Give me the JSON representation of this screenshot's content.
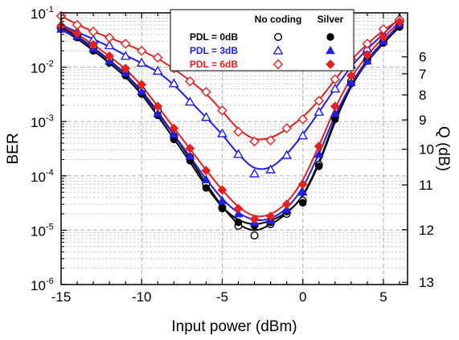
{
  "chart_data": {
    "type": "scatter",
    "title": "",
    "xlabel": "Input power (dBm)",
    "ylabel": "BER",
    "y2label": "Q (dB)",
    "xlim": [
      -15,
      6.5
    ],
    "ylim_log10": [
      -6,
      -1
    ],
    "x_ticks": [
      -15,
      -10,
      -5,
      0,
      5
    ],
    "x_tick_labels": [
      "-15",
      "-10",
      "-5",
      "0",
      "5"
    ],
    "y_ticks": [
      {
        "base": "10",
        "exp": "-1"
      },
      {
        "base": "10",
        "exp": "-2"
      },
      {
        "base": "10",
        "exp": "-3"
      },
      {
        "base": "10",
        "exp": "-4"
      },
      {
        "base": "10",
        "exp": "-5"
      },
      {
        "base": "10",
        "exp": "-6"
      }
    ],
    "q_ticks": [
      {
        "label": "6",
        "ber": 0.0155
      },
      {
        "label": "7",
        "ber": 0.00755
      },
      {
        "label": "8",
        "ber": 0.0031
      },
      {
        "label": "9",
        "ber": 0.00107
      },
      {
        "label": "10",
        "ber": 0.00031
      },
      {
        "label": "11",
        "ber": 6.8e-05
      },
      {
        "label": "12",
        "ber": 1.02e-05
      },
      {
        "label": "13",
        "ber": 1.1e-06
      }
    ],
    "grid": true,
    "legend_position": "top",
    "legend": {
      "col_headers": [
        "No coding",
        "Silver"
      ],
      "rows": [
        {
          "label": "PDL = 0dB",
          "color": "#000000"
        },
        {
          "label": "PDL = 3dB",
          "color": "#1f1fe6"
        },
        {
          "label": "PDL = 6dB",
          "color": "#e61f1f"
        }
      ]
    },
    "x": [
      -15,
      -14,
      -13,
      -12,
      -11,
      -10,
      -9,
      -8,
      -7,
      -6,
      -5,
      -4,
      -3,
      -2,
      -1,
      0,
      1,
      2,
      3,
      4,
      5,
      6
    ],
    "series": [
      {
        "name": "PDL = 0dB",
        "coding": "No coding",
        "marker": "circle-open",
        "color": "#000000",
        "values": [
          0.055,
          0.038,
          0.023,
          0.0135,
          0.0078,
          0.0037,
          0.0016,
          0.00054,
          0.00022,
          7e-05,
          2.6e-05,
          1.2e-05,
          8e-06,
          1.3e-05,
          2e-05,
          3.5e-05,
          0.00016,
          0.0012,
          0.0055,
          0.014,
          0.03,
          0.06
        ]
      },
      {
        "name": "PDL = 0dB",
        "coding": "Silver",
        "marker": "circle-filled",
        "color": "#000000",
        "values": [
          0.05,
          0.035,
          0.02,
          0.012,
          0.007,
          0.0032,
          0.0013,
          0.00047,
          0.00019,
          6e-05,
          2.5e-05,
          1.4e-05,
          1.2e-05,
          1.4e-05,
          2.2e-05,
          3.2e-05,
          0.00015,
          0.0011,
          0.005,
          0.013,
          0.028,
          0.055
        ]
      },
      {
        "name": "PDL = 3dB",
        "coding": "No coding",
        "marker": "triangle-open",
        "color": "#1f1fe6",
        "values": [
          0.06,
          0.045,
          0.032,
          0.025,
          0.016,
          0.012,
          0.0085,
          0.005,
          0.0023,
          0.0012,
          0.0006,
          0.00025,
          0.00011,
          0.00013,
          0.00024,
          0.00055,
          0.0015,
          0.004,
          0.011,
          0.022,
          0.04,
          0.08
        ]
      },
      {
        "name": "PDL = 3dB",
        "coding": "Silver",
        "marker": "triangle-filled",
        "color": "#1f1fe6",
        "values": [
          0.05,
          0.037,
          0.022,
          0.013,
          0.0078,
          0.0036,
          0.0014,
          0.00058,
          0.00023,
          8.5e-05,
          3.5e-05,
          2e-05,
          1.4e-05,
          1.5e-05,
          2.4e-05,
          5e-05,
          0.00025,
          0.0014,
          0.0052,
          0.013,
          0.03,
          0.062
        ]
      },
      {
        "name": "PDL = 6dB",
        "coding": "No coding",
        "marker": "diamond-open",
        "color": "#e61f1f",
        "values": [
          0.088,
          0.06,
          0.045,
          0.035,
          0.027,
          0.02,
          0.015,
          0.0095,
          0.0055,
          0.0035,
          0.0016,
          0.00065,
          0.00043,
          0.00045,
          0.00075,
          0.0011,
          0.0024,
          0.006,
          0.014,
          0.027,
          0.05,
          0.075
        ]
      },
      {
        "name": "PDL = 6dB",
        "coding": "Silver",
        "marker": "diamond-filled",
        "color": "#e61f1f",
        "values": [
          0.058,
          0.042,
          0.026,
          0.016,
          0.0095,
          0.0048,
          0.0019,
          0.00075,
          0.00032,
          0.000125,
          5.5e-05,
          2.5e-05,
          1.6e-05,
          1.8e-05,
          3e-05,
          7e-05,
          0.00035,
          0.0019,
          0.007,
          0.017,
          0.036,
          0.068
        ]
      }
    ]
  }
}
